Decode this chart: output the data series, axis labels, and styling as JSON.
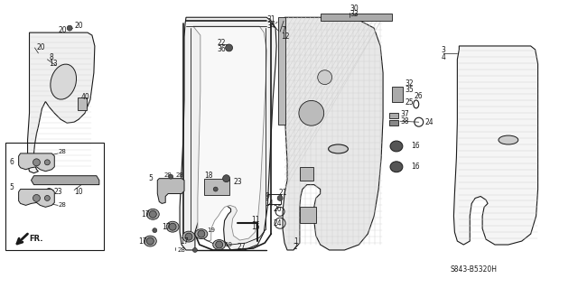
{
  "bg_color": "#ffffff",
  "line_color": "#1a1a1a",
  "fig_width": 6.4,
  "fig_height": 3.19,
  "dpi": 100,
  "diagram_id": "S843-B5320H"
}
